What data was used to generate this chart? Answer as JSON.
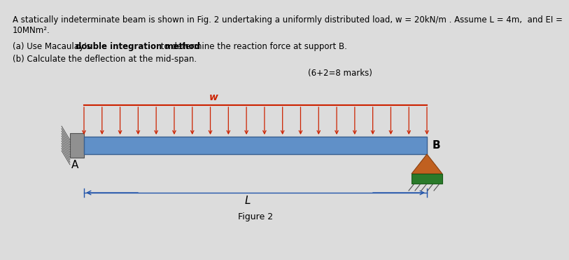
{
  "bg_color": "#dcdcdc",
  "text_line1": "A statically indeterminate beam is shown in Fig. 2 undertaking a uniformly distributed load, w = 20kN/m . Assume L = 4m,  and EI =",
  "text_line2": "10MNm².",
  "part_a_pre": "(a) Use Macaulay’s ",
  "part_a_bold": "double integration method",
  "part_a_post": " to determine the reaction force at support B.",
  "part_b": "(b) Calculate the deflection at the mid-span.",
  "marks": "(6+2=8 marks)",
  "figure_label": "Figure 2",
  "beam_color": "#6090c8",
  "beam_edge_color": "#3a6090",
  "wall_color": "#909090",
  "wall_hatch_color": "#505050",
  "load_color": "#cc2200",
  "load_label": "w",
  "support_tri_color": "#c06020",
  "support_tri_edge": "#8a4010",
  "support_base_color": "#2a7a2a",
  "support_base_edge": "#1a5a1a",
  "dim_color": "#2255aa",
  "label_color": "#000000",
  "num_load_arrows": 20,
  "label_A": "A",
  "label_B": "B",
  "label_L": "L"
}
